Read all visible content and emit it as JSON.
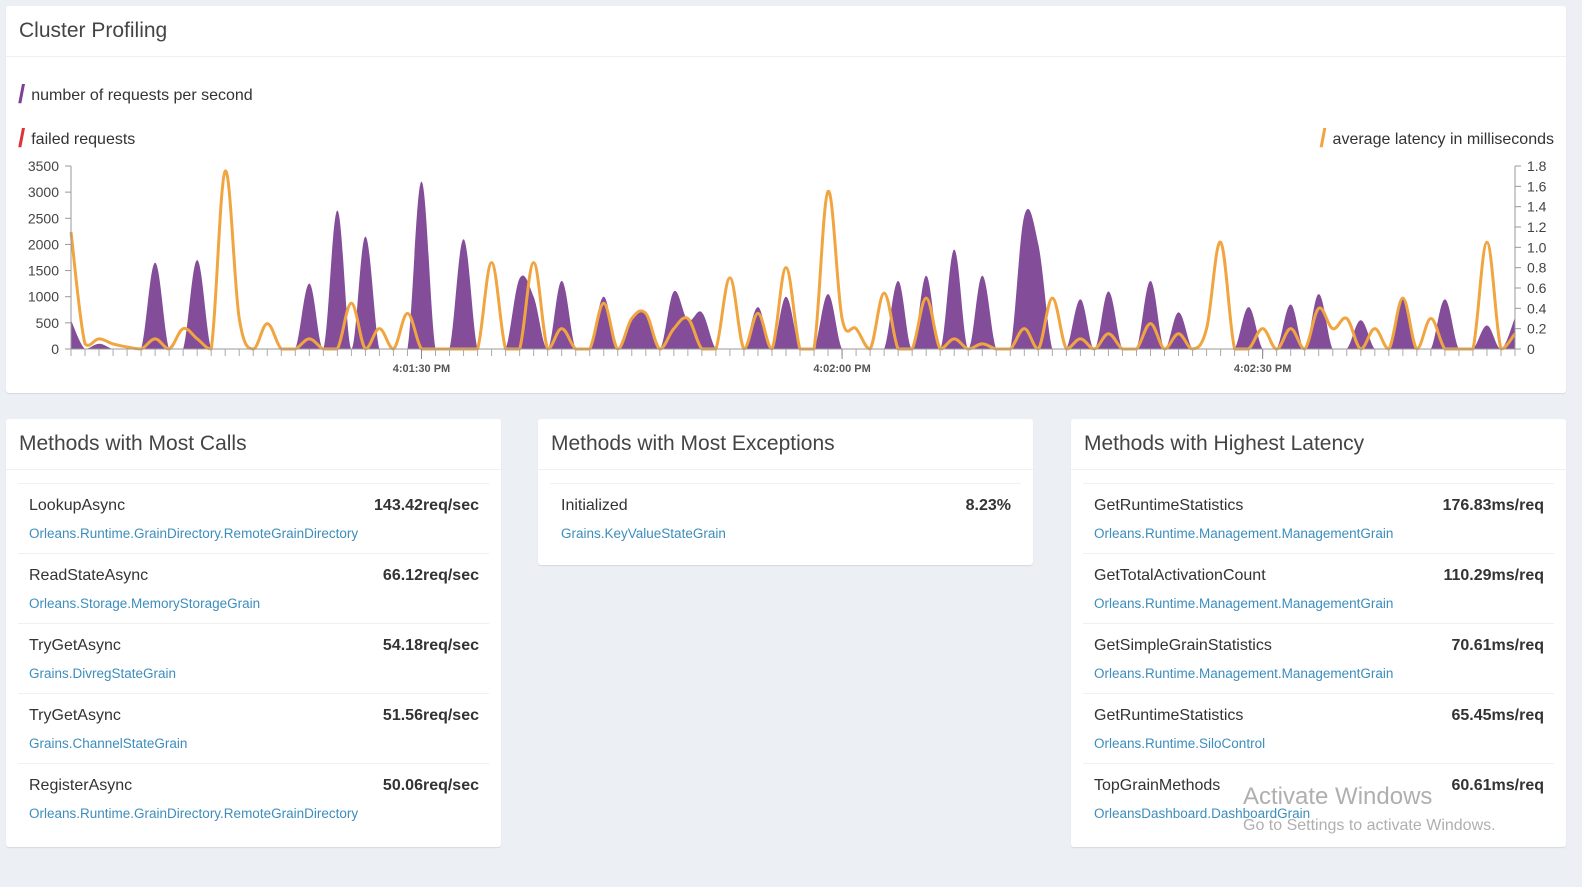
{
  "profiling": {
    "title": "Cluster Profiling",
    "legend": {
      "requests": "number of requests per second",
      "failed": "failed requests",
      "latency": "average latency in milliseconds"
    }
  },
  "colors": {
    "requests": "#7c4394",
    "failed": "#dd3333",
    "latency": "#f0a540",
    "link": "#3c8dbc"
  },
  "chart_data": {
    "type": "area",
    "title": "",
    "x_tick_labels": [
      "4:01:30 PM",
      "4:02:00 PM",
      "4:02:30 PM"
    ],
    "x_tick_indices": [
      25,
      55,
      85
    ],
    "y_left": {
      "label": "number of requests per second",
      "range": [
        0,
        3500
      ],
      "ticks": [
        0,
        500,
        1000,
        1500,
        2000,
        2500,
        3000,
        3500
      ]
    },
    "y_right": {
      "label": "average latency in milliseconds",
      "range": [
        0,
        1.8
      ],
      "ticks": [
        0,
        0.2,
        0.4,
        0.6,
        0.8,
        1.0,
        1.2,
        1.4,
        1.6,
        1.8
      ]
    },
    "series": [
      {
        "name": "number of requests per second",
        "axis": "left",
        "values": [
          550,
          0,
          100,
          0,
          0,
          0,
          1650,
          0,
          0,
          1700,
          0,
          0,
          0,
          0,
          0,
          0,
          0,
          1250,
          0,
          2650,
          0,
          2150,
          0,
          0,
          0,
          3200,
          0,
          0,
          2100,
          0,
          0,
          0,
          1350,
          1000,
          0,
          1300,
          0,
          0,
          1000,
          0,
          600,
          700,
          0,
          1100,
          550,
          700,
          0,
          0,
          0,
          800,
          0,
          1000,
          0,
          0,
          1050,
          0,
          0,
          0,
          0,
          1300,
          0,
          1400,
          0,
          1900,
          0,
          1400,
          0,
          0,
          2550,
          2000,
          0,
          0,
          950,
          0,
          1100,
          0,
          0,
          1300,
          0,
          700,
          0,
          0,
          0,
          0,
          800,
          0,
          0,
          850,
          0,
          1050,
          0,
          0,
          550,
          0,
          0,
          1000,
          0,
          0,
          950,
          0,
          0,
          450,
          0,
          600
        ],
        "color": "#7c4394"
      },
      {
        "name": "average latency in milliseconds",
        "axis": "right",
        "values": [
          1.15,
          0.05,
          0.1,
          0.05,
          0.02,
          0.0,
          0.1,
          0.0,
          0.2,
          0.1,
          0.0,
          1.75,
          0.3,
          0.0,
          0.25,
          0.0,
          0.0,
          0.1,
          0.0,
          0.0,
          0.45,
          0.0,
          0.2,
          0.0,
          0.35,
          0.0,
          0.0,
          0.0,
          0.0,
          0.0,
          0.85,
          0.0,
          0.0,
          0.85,
          0.0,
          0.2,
          0.0,
          0.0,
          0.45,
          0.0,
          0.3,
          0.35,
          0.0,
          0.2,
          0.3,
          0.0,
          0.0,
          0.7,
          0.0,
          0.35,
          0.0,
          0.8,
          0.0,
          0.0,
          1.55,
          0.3,
          0.2,
          0.0,
          0.55,
          0.0,
          0.0,
          0.5,
          0.0,
          0.1,
          0.0,
          0.05,
          0.0,
          0.0,
          0.2,
          0.0,
          0.5,
          0.0,
          0.1,
          0.0,
          0.15,
          0.0,
          0.0,
          0.25,
          0.0,
          0.15,
          0.0,
          0.2,
          1.05,
          0.0,
          0.0,
          0.2,
          0.0,
          0.2,
          0.0,
          0.4,
          0.2,
          0.3,
          0.0,
          0.2,
          0.0,
          0.5,
          0.0,
          0.3,
          0.0,
          0.0,
          0.0,
          1.05,
          0.0,
          0.15
        ],
        "color": "#f0a540"
      },
      {
        "name": "failed requests",
        "axis": "left",
        "values": [
          0
        ],
        "color": "#dd3333"
      }
    ],
    "grid": false,
    "legend_position": "top-left"
  },
  "most_calls": {
    "title": "Methods with Most Calls",
    "items": [
      {
        "method": "LookupAsync",
        "grain": "Orleans.Runtime.GrainDirectory.RemoteGrainDirectory",
        "value": "143.42req/sec"
      },
      {
        "method": "ReadStateAsync",
        "grain": "Orleans.Storage.MemoryStorageGrain",
        "value": "66.12req/sec"
      },
      {
        "method": "TryGetAsync",
        "grain": "Grains.DivregStateGrain",
        "value": "54.18req/sec"
      },
      {
        "method": "TryGetAsync",
        "grain": "Grains.ChannelStateGrain",
        "value": "51.56req/sec"
      },
      {
        "method": "RegisterAsync",
        "grain": "Orleans.Runtime.GrainDirectory.RemoteGrainDirectory",
        "value": "50.06req/sec"
      }
    ]
  },
  "most_exceptions": {
    "title": "Methods with Most Exceptions",
    "items": [
      {
        "method": "Initialized",
        "grain": "Grains.KeyValueStateGrain",
        "value": "8.23%"
      }
    ]
  },
  "highest_latency": {
    "title": "Methods with Highest Latency",
    "items": [
      {
        "method": "GetRuntimeStatistics",
        "grain": "Orleans.Runtime.Management.ManagementGrain",
        "value": "176.83ms/req"
      },
      {
        "method": "GetTotalActivationCount",
        "grain": "Orleans.Runtime.Management.ManagementGrain",
        "value": "110.29ms/req"
      },
      {
        "method": "GetSimpleGrainStatistics",
        "grain": "Orleans.Runtime.Management.ManagementGrain",
        "value": "70.61ms/req"
      },
      {
        "method": "GetRuntimeStatistics",
        "grain": "Orleans.Runtime.SiloControl",
        "value": "65.45ms/req"
      },
      {
        "method": "TopGrainMethods",
        "grain": "OrleansDashboard.DashboardGrain",
        "value": "60.61ms/req"
      }
    ]
  },
  "watermark": {
    "title": "Activate Windows",
    "subtitle": "Go to Settings to activate Windows."
  }
}
